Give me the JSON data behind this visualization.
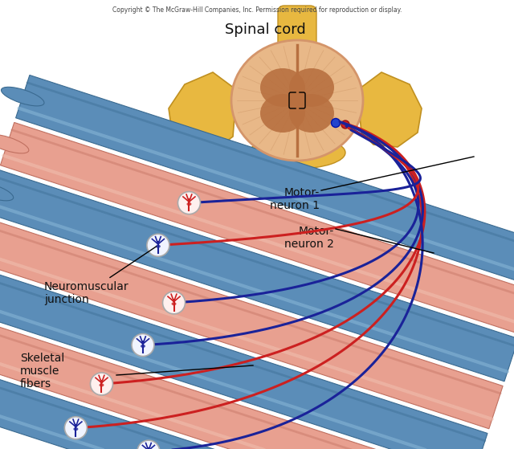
{
  "copyright_text": "Copyright © The McGraw-Hill Companies, Inc. Permission required for reproduction or display.",
  "spinal_cord_label": "Spinal cord",
  "motor_neuron1_label": "Motor-\nneuron 1",
  "motor_neuron2_label": "Motor-\nneuron 2",
  "neuromuscular_label": "Neuromuscular—\njunction",
  "skeletal_label": "Skeletal—\nmuscle\nfibers",
  "bg_color": "#ffffff",
  "cord_outer_color": "#d4956a",
  "cord_inner_color": "#b87040",
  "cord_gray_color": "#e8b888",
  "vertebra_color": "#e8b840",
  "vertebra_edge": "#c09020",
  "muscle_blue": "#5b8db8",
  "muscle_blue_dark": "#3a6a90",
  "muscle_blue_light": "#8ab8d8",
  "muscle_pink": "#e8a090",
  "muscle_pink_dark": "#c07060",
  "muscle_pink_light": "#f0c0b0",
  "nerve_red": "#cc2020",
  "nerve_blue": "#1a2299",
  "junction_white": "#f8f8ff",
  "text_color": "#111111"
}
